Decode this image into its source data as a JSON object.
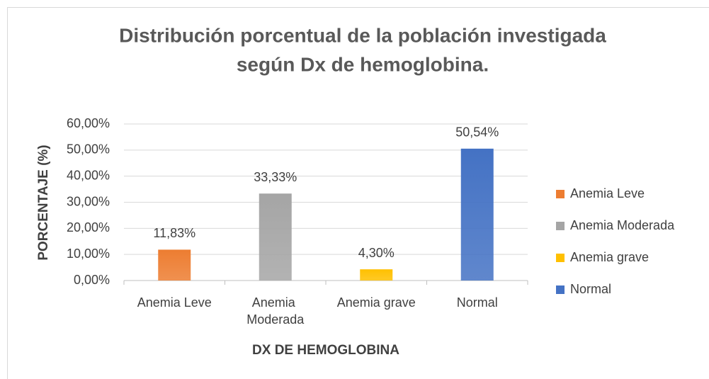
{
  "chart_data": {
    "type": "bar",
    "title": [
      "Distribución porcentual de la población investigada",
      "según Dx de hemoglobina."
    ],
    "categories": [
      "Anemia Leve",
      "Anemia Moderada",
      "Anemia grave",
      "Normal"
    ],
    "values": [
      11.83,
      33.33,
      4.3,
      50.54
    ],
    "value_labels": [
      "11,83%",
      "33,33%",
      "4,30%",
      "50,54%"
    ],
    "colors": [
      "#ed7d31",
      "#a5a5a5",
      "#ffc000",
      "#4472c4"
    ],
    "ylim": [
      0,
      60
    ],
    "yticks": [
      {
        "value": 0,
        "label": "0,00%"
      },
      {
        "value": 10,
        "label": "10,00%"
      },
      {
        "value": 20,
        "label": "20,00%"
      },
      {
        "value": 30,
        "label": "30,00%"
      },
      {
        "value": 40,
        "label": "40,00%"
      },
      {
        "value": 50,
        "label": "50,00%"
      },
      {
        "value": 60,
        "label": "60,00%"
      }
    ],
    "y_label": "PORCENTAJE (%)",
    "x_label": "DX DE HEMOGLOBINA",
    "grid": true,
    "legend": "right"
  }
}
